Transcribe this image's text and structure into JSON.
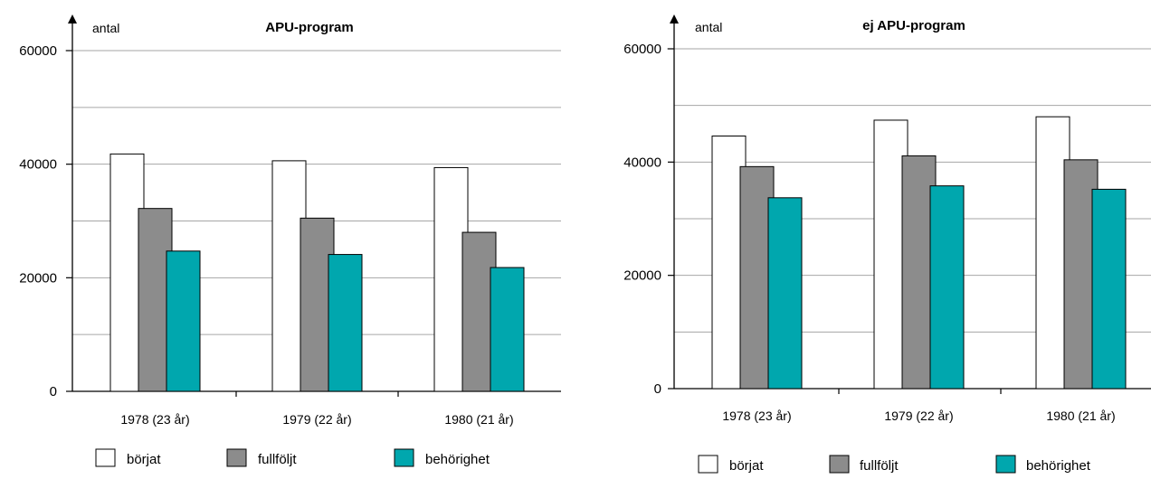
{
  "chart_data": [
    {
      "type": "bar",
      "title": "APU-program",
      "ylabel": "antal",
      "ylim": [
        0,
        60000
      ],
      "yticks": [
        0,
        20000,
        40000,
        60000
      ],
      "ytick_labels": [
        "0",
        "20000",
        "40000",
        "60000"
      ],
      "gridlines": [
        10000,
        20000,
        30000,
        40000,
        50000
      ],
      "grid": true,
      "categories": [
        "1978 (23 år)",
        "1979 (22 år)",
        "1980 (21 år)"
      ],
      "series": [
        {
          "name": "börjat",
          "values": [
            41800,
            40600,
            39400
          ]
        },
        {
          "name": "fullföljt",
          "values": [
            32200,
            30500,
            28000
          ]
        },
        {
          "name": "behörighet",
          "values": [
            24700,
            24100,
            21800
          ]
        }
      ],
      "legend": "bottom"
    },
    {
      "type": "bar",
      "title": "ej APU-program",
      "ylabel": "antal",
      "ylim": [
        0,
        60000
      ],
      "yticks": [
        0,
        20000,
        40000,
        60000
      ],
      "ytick_labels": [
        "0",
        "20000",
        "40000",
        "60000"
      ],
      "gridlines": [
        10000,
        20000,
        30000,
        40000,
        50000
      ],
      "grid": true,
      "categories": [
        "1978 (23 år)",
        "1979 (22 år)",
        "1980 (21 år)"
      ],
      "series": [
        {
          "name": "börjat",
          "values": [
            44600,
            47400,
            48000
          ]
        },
        {
          "name": "fullföljt",
          "values": [
            39200,
            41100,
            40400
          ]
        },
        {
          "name": "behörighet",
          "values": [
            33700,
            35800,
            35200
          ]
        }
      ],
      "legend": "bottom"
    }
  ],
  "colors": {
    "börjat": "#ffffff",
    "fullföljt": "#8c8c8c",
    "behörighet": "#00a7ae",
    "axis": "#000000",
    "grid": "#a6a6a6"
  }
}
